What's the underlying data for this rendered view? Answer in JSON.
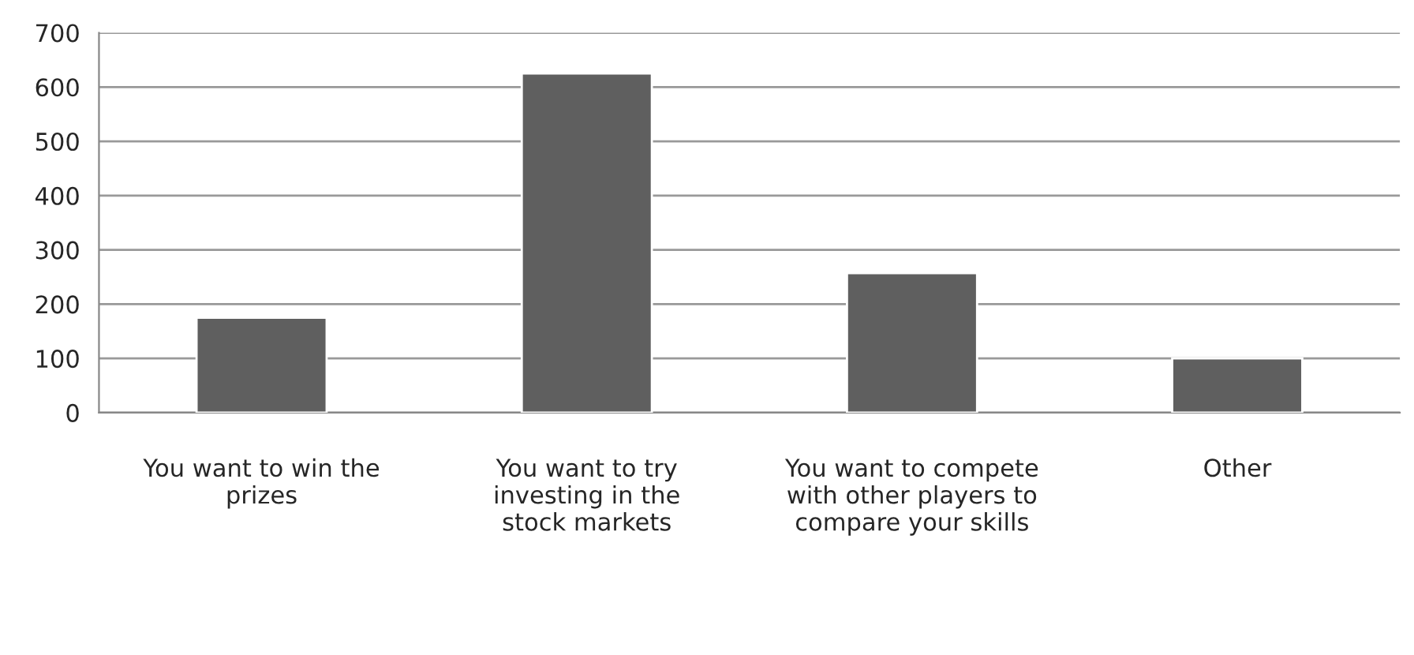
{
  "chart_data": {
    "type": "bar",
    "categories": [
      "You want to win the prizes",
      "You want to try investing in the stock markets",
      "You want to compete with other players to compare your skills",
      "Other"
    ],
    "values": [
      175,
      625,
      257,
      100
    ],
    "color": "#5f5f5f",
    "ylim": [
      0,
      700
    ],
    "yticks": [
      0,
      100,
      200,
      300,
      400,
      500,
      600,
      700
    ],
    "grid": "y",
    "legend": false
  }
}
